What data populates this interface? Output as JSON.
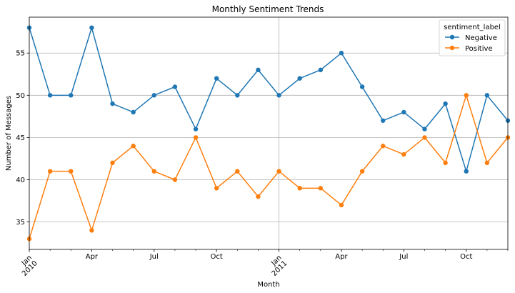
{
  "chart_data": {
    "type": "line",
    "title": "Monthly Sentiment Trends",
    "xlabel": "Month",
    "ylabel": "Number of Messages",
    "ylim": [
      31.75,
      59.25
    ],
    "xlim": [
      "2010-01",
      "2011-12"
    ],
    "yticks": [
      35,
      40,
      45,
      50,
      55
    ],
    "grid": true,
    "legend": {
      "title": "sentiment_label",
      "placement": "top-right"
    },
    "x": [
      "2010-01",
      "2010-02",
      "2010-03",
      "2010-04",
      "2010-05",
      "2010-06",
      "2010-07",
      "2010-08",
      "2010-09",
      "2010-10",
      "2010-11",
      "2010-12",
      "2011-01",
      "2011-02",
      "2011-03",
      "2011-04",
      "2011-05",
      "2011-06",
      "2011-07",
      "2011-08",
      "2011-09",
      "2011-10",
      "2011-11",
      "2011-12"
    ],
    "xtick_labels": [
      {
        "x": "2010-01",
        "lines": [
          "Jan",
          "2010"
        ]
      },
      {
        "x": "2010-04",
        "lines": [
          "Apr"
        ]
      },
      {
        "x": "2010-07",
        "lines": [
          "Jul"
        ]
      },
      {
        "x": "2010-10",
        "lines": [
          "Oct"
        ]
      },
      {
        "x": "2011-01",
        "lines": [
          "Jan",
          "2011"
        ]
      },
      {
        "x": "2011-04",
        "lines": [
          "Apr"
        ]
      },
      {
        "x": "2011-07",
        "lines": [
          "Jul"
        ]
      },
      {
        "x": "2011-10",
        "lines": [
          "Oct"
        ]
      }
    ],
    "major_grid_x": [
      "2010-01",
      "2011-01"
    ],
    "series": [
      {
        "name": "Negative",
        "color": "#1f77b4",
        "values": [
          58,
          50,
          50,
          58,
          49,
          48,
          50,
          51,
          46,
          52,
          50,
          53,
          50,
          52,
          53,
          55,
          51,
          47,
          48,
          46,
          49,
          41,
          50,
          47
        ]
      },
      {
        "name": "Positive",
        "color": "#ff7f0e",
        "values": [
          33,
          41,
          41,
          34,
          42,
          44,
          41,
          40,
          45,
          39,
          41,
          38,
          41,
          39,
          39,
          37,
          41,
          44,
          43,
          45,
          42,
          50,
          42,
          45
        ]
      }
    ]
  }
}
